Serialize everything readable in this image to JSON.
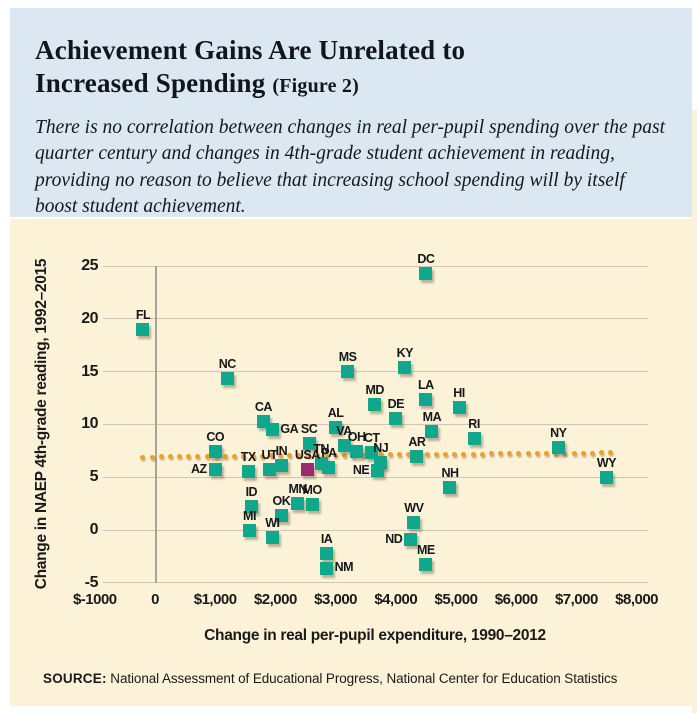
{
  "header": {
    "title_line1": "Achievement Gains Are Unrelated to",
    "title_line2": "Increased Spending",
    "figure_tag": "(Figure 2)",
    "subtitle": "There is no correlation between changes in real per-pupil spending over the past quarter century and changes in 4th-grade student achievement in reading, providing no reason to believe that increasing school spending will by itself boost student achievement."
  },
  "source": {
    "label": "SOURCE:",
    "text": " National Assessment of Educational Progress, National Center for Education Statistics"
  },
  "colors": {
    "header_bg": "#dce8f1",
    "chart_bg": "#fcf2d7",
    "marker": "#10a88c",
    "marker_usa": "#9b2b71",
    "trendline": "#f0a026",
    "gridline": "#ccc6b5",
    "zero_line": "#a8a298",
    "text": "#1a1a1a"
  },
  "chart_data": {
    "type": "scatter",
    "xlabel": "Change in real per-pupil expenditure, 1990–2012",
    "ylabel": "Change in NAEP 4th-grade reading, 1992–2015",
    "xlim": [
      -1000,
      8000
    ],
    "ylim": [
      -5,
      25
    ],
    "grid": "horizontal",
    "legend": "none",
    "x_ticks": [
      {
        "value": -1000,
        "label": "$-1000"
      },
      {
        "value": 0,
        "label": "0"
      },
      {
        "value": 1000,
        "label": "$1,000"
      },
      {
        "value": 2000,
        "label": "$2,000"
      },
      {
        "value": 3000,
        "label": "$3,000"
      },
      {
        "value": 4000,
        "label": "$4,000"
      },
      {
        "value": 5000,
        "label": "$5,000"
      },
      {
        "value": 6000,
        "label": "$6,000"
      },
      {
        "value": 7000,
        "label": "$7,000"
      },
      {
        "value": 8000,
        "label": "$8,000"
      }
    ],
    "y_ticks": [
      25,
      20,
      15,
      10,
      5,
      0,
      -5
    ],
    "trendline": {
      "style": "dotted",
      "x_start": -200,
      "y_start": 6.9,
      "x_end": 7570,
      "y_end": 7.3
    },
    "points": [
      {
        "label": "FL",
        "x": -200,
        "y": 19.0,
        "label_pos": "above"
      },
      {
        "label": "NC",
        "x": 1200,
        "y": 14.3,
        "label_pos": "above"
      },
      {
        "label": "CA",
        "x": 1800,
        "y": 10.3,
        "label_pos": "above"
      },
      {
        "label": "GA",
        "x": 1950,
        "y": 9.5,
        "label_pos": "right"
      },
      {
        "label": "CO",
        "x": 1000,
        "y": 7.4,
        "label_pos": "above"
      },
      {
        "label": "AZ",
        "x": 1000,
        "y": 5.7,
        "label_pos": "left"
      },
      {
        "label": "TX",
        "x": 1550,
        "y": 5.5,
        "label_pos": "above"
      },
      {
        "label": "UT",
        "x": 1900,
        "y": 5.7,
        "label_pos": "above"
      },
      {
        "label": "IN",
        "x": 2100,
        "y": 6.1,
        "label_pos": "above"
      },
      {
        "label": "USA",
        "x": 2530,
        "y": 5.7,
        "label_pos": "above",
        "highlight": true
      },
      {
        "label": "SC",
        "x": 2560,
        "y": 8.2,
        "label_pos": "above"
      },
      {
        "label": "TN",
        "x": 2760,
        "y": 6.3,
        "label_pos": "above"
      },
      {
        "label": "PA",
        "x": 2890,
        "y": 5.9,
        "label_pos": "above"
      },
      {
        "label": "VA",
        "x": 3140,
        "y": 8.0,
        "label_pos": "above"
      },
      {
        "label": "OH",
        "x": 3350,
        "y": 7.4,
        "label_pos": "above"
      },
      {
        "label": "CT",
        "x": 3600,
        "y": 7.3,
        "label_pos": "above"
      },
      {
        "label": "NJ",
        "x": 3750,
        "y": 6.4,
        "label_pos": "above"
      },
      {
        "label": "NE",
        "x": 3700,
        "y": 5.6,
        "label_pos": "left"
      },
      {
        "label": "AL",
        "x": 3000,
        "y": 9.7,
        "label_pos": "above"
      },
      {
        "label": "MS",
        "x": 3200,
        "y": 15.0,
        "label_pos": "above"
      },
      {
        "label": "MD",
        "x": 3650,
        "y": 11.9,
        "label_pos": "above"
      },
      {
        "label": "DE",
        "x": 4000,
        "y": 10.6,
        "label_pos": "above"
      },
      {
        "label": "KY",
        "x": 4150,
        "y": 15.4,
        "label_pos": "above"
      },
      {
        "label": "DC",
        "x": 4500,
        "y": 24.3,
        "label_pos": "above"
      },
      {
        "label": "LA",
        "x": 4500,
        "y": 12.4,
        "label_pos": "above"
      },
      {
        "label": "AR",
        "x": 4350,
        "y": 7.0,
        "label_pos": "above"
      },
      {
        "label": "MA",
        "x": 4600,
        "y": 9.3,
        "label_pos": "above"
      },
      {
        "label": "HI",
        "x": 5050,
        "y": 11.6,
        "label_pos": "above"
      },
      {
        "label": "RI",
        "x": 5300,
        "y": 8.7,
        "label_pos": "above"
      },
      {
        "label": "NH",
        "x": 4900,
        "y": 4.0,
        "label_pos": "above"
      },
      {
        "label": "NY",
        "x": 6700,
        "y": 7.8,
        "label_pos": "above"
      },
      {
        "label": "WY",
        "x": 7500,
        "y": 5.0,
        "label_pos": "above"
      },
      {
        "label": "ID",
        "x": 1600,
        "y": 2.2,
        "label_pos": "above"
      },
      {
        "label": "OK",
        "x": 2100,
        "y": 1.4,
        "label_pos": "above"
      },
      {
        "label": "MN",
        "x": 2370,
        "y": 2.5,
        "label_pos": "above"
      },
      {
        "label": "MO",
        "x": 2610,
        "y": 2.4,
        "label_pos": "above"
      },
      {
        "label": "MI",
        "x": 1570,
        "y": 0.0,
        "label_pos": "above"
      },
      {
        "label": "WI",
        "x": 1950,
        "y": -0.7,
        "label_pos": "above"
      },
      {
        "label": "IA",
        "x": 2850,
        "y": -2.2,
        "label_pos": "above"
      },
      {
        "label": "NM",
        "x": 2850,
        "y": -3.6,
        "label_pos": "right"
      },
      {
        "label": "WV",
        "x": 4300,
        "y": 0.7,
        "label_pos": "above"
      },
      {
        "label": "ND",
        "x": 4250,
        "y": -0.9,
        "label_pos": "left"
      },
      {
        "label": "ME",
        "x": 4500,
        "y": -3.3,
        "label_pos": "above"
      }
    ]
  }
}
